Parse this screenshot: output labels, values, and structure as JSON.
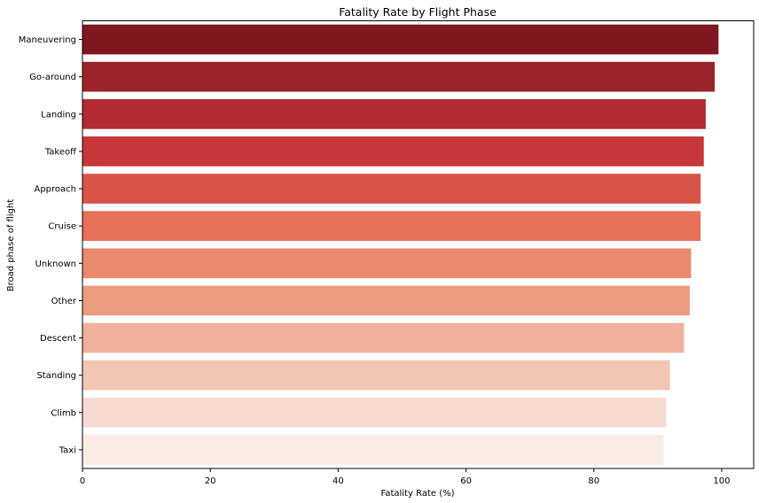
{
  "chart_data": {
    "type": "bar",
    "orientation": "horizontal",
    "title": "Fatality Rate by Flight Phase",
    "xlabel": "Fatality Rate (%)",
    "ylabel": "Broad phase of flight",
    "xlim": [
      0,
      105
    ],
    "xticks": [
      0,
      20,
      40,
      60,
      80,
      100
    ],
    "grid": false,
    "categories": [
      "Maneuvering",
      "Go-around",
      "Landing",
      "Takeoff",
      "Approach",
      "Cruise",
      "Unknown",
      "Other",
      "Descent",
      "Standing",
      "Climb",
      "Taxi"
    ],
    "values": [
      99.5,
      98.9,
      97.5,
      97.2,
      96.7,
      96.7,
      95.2,
      95.0,
      94.1,
      91.9,
      91.3,
      90.9
    ],
    "colors": [
      "#7f1620",
      "#9a232b",
      "#b32b32",
      "#c7373a",
      "#d85448",
      "#e5715a",
      "#e98a6e",
      "#eb9c80",
      "#efb19b",
      "#f2c6b3",
      "#f7dbd0",
      "#fbebe5"
    ]
  }
}
